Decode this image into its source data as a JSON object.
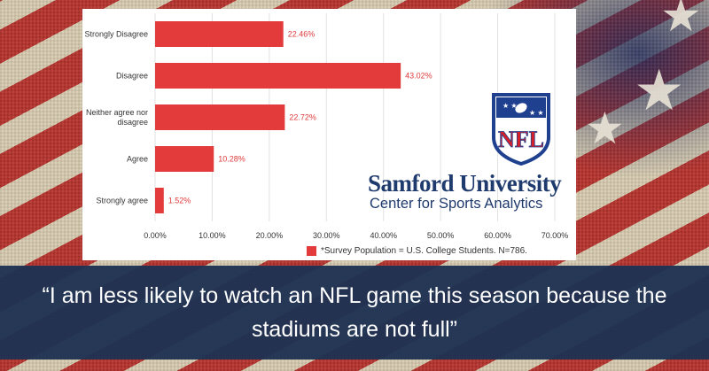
{
  "chart_data": {
    "type": "bar",
    "orientation": "horizontal",
    "categories": [
      "Strongly Disagree",
      "Disagree",
      "Neither agree nor disagree",
      "Agree",
      "Strongly agree"
    ],
    "category_lines": [
      [
        "Strongly Disagree"
      ],
      [
        "Disagree"
      ],
      [
        "Neither agree nor",
        "disagree"
      ],
      [
        "Agree"
      ],
      [
        "Strongly agree"
      ]
    ],
    "values": [
      22.46,
      43.02,
      22.72,
      10.28,
      1.52
    ],
    "value_labels": [
      "22.46%",
      "43.02%",
      "22.72%",
      "10.28%",
      "1.52%"
    ],
    "xlim": [
      0,
      70
    ],
    "xticks": [
      "0.00%",
      "10.00%",
      "20.00%",
      "30.00%",
      "40.00%",
      "50.00%",
      "60.00%",
      "70.00%"
    ],
    "grid": true,
    "bar_color": "#e33b3b",
    "value_label_color": "#e03a3a",
    "legend": {
      "label": "*Survey Population = U.S. College Students. N=786.",
      "placement": "bottom"
    }
  },
  "logos": {
    "nfl": {
      "text": "NFL",
      "icon": "nfl-shield-icon",
      "colors": {
        "blue": "#1f3f8f",
        "red": "#d6202a"
      }
    },
    "samford": {
      "name": "Samford University",
      "subtitle": "Center for Sports Analytics",
      "color": "#1f3a6d"
    }
  },
  "quote": {
    "line1": "“I am less likely to watch an NFL game this season because the",
    "line2": "stadiums are not full”"
  },
  "colors": {
    "banner": "#1e3252",
    "panel": "#ffffff"
  }
}
